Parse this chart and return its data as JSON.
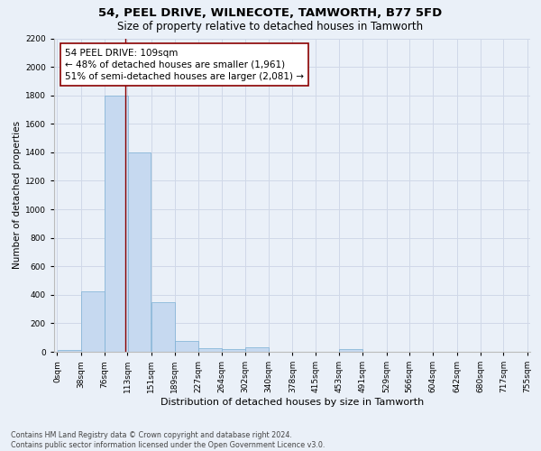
{
  "title1": "54, PEEL DRIVE, WILNECOTE, TAMWORTH, B77 5FD",
  "title2": "Size of property relative to detached houses in Tamworth",
  "xlabel": "Distribution of detached houses by size in Tamworth",
  "ylabel": "Number of detached properties",
  "bar_left_edges": [
    0,
    38,
    76,
    113,
    151,
    189,
    227,
    264,
    302,
    340,
    378,
    415,
    453,
    491,
    529,
    566,
    604,
    642,
    680,
    717
  ],
  "bar_widths": [
    38,
    38,
    38,
    38,
    38,
    38,
    38,
    38,
    38,
    38,
    38,
    38,
    38,
    38,
    38,
    38,
    38,
    38,
    38,
    38
  ],
  "bar_heights": [
    10,
    425,
    1800,
    1400,
    350,
    75,
    25,
    20,
    30,
    0,
    0,
    0,
    20,
    0,
    0,
    0,
    0,
    0,
    0,
    0
  ],
  "bar_color": "#c6d9f0",
  "bar_edge_color": "#7bafd4",
  "grid_color": "#d0d8e8",
  "property_line_x": 109,
  "property_line_color": "#8b0000",
  "annotation_text": "54 PEEL DRIVE: 109sqm\n← 48% of detached houses are smaller (1,961)\n51% of semi-detached houses are larger (2,081) →",
  "annotation_box_color": "#ffffff",
  "annotation_box_edge": "#8b0000",
  "ylim": [
    0,
    2200
  ],
  "yticks": [
    0,
    200,
    400,
    600,
    800,
    1000,
    1200,
    1400,
    1600,
    1800,
    2000,
    2200
  ],
  "xtick_labels": [
    "0sqm",
    "38sqm",
    "76sqm",
    "113sqm",
    "151sqm",
    "189sqm",
    "227sqm",
    "264sqm",
    "302sqm",
    "340sqm",
    "378sqm",
    "415sqm",
    "453sqm",
    "491sqm",
    "529sqm",
    "566sqm",
    "604sqm",
    "642sqm",
    "680sqm",
    "717sqm",
    "755sqm"
  ],
  "background_color": "#eaf0f8",
  "plot_bg_color": "#eaf0f8",
  "footer_line1": "Contains HM Land Registry data © Crown copyright and database right 2024.",
  "footer_line2": "Contains public sector information licensed under the Open Government Licence v3.0.",
  "title1_fontsize": 9.5,
  "title2_fontsize": 8.5,
  "xlabel_fontsize": 8,
  "ylabel_fontsize": 7.5,
  "tick_fontsize": 6.5,
  "annotation_fontsize": 7.5,
  "footer_fontsize": 5.8
}
